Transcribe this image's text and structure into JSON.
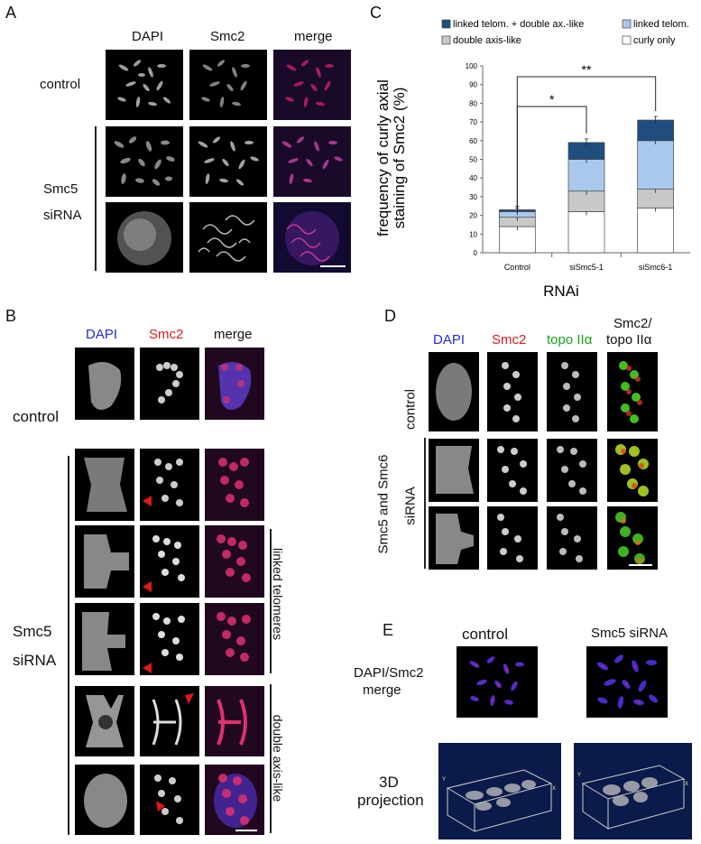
{
  "panels": {
    "A": {
      "label": "A",
      "columns": [
        "DAPI",
        "Smc2",
        "merge"
      ],
      "rows": [
        "control",
        "Smc5",
        "siRNA"
      ]
    },
    "B": {
      "label": "B",
      "columns": [
        "DAPI",
        "Smc2",
        "merge"
      ],
      "rows": [
        "control",
        "Smc5",
        "siRNA"
      ],
      "groups": [
        "linked telomeres",
        "double axis-like"
      ],
      "column_colors": {
        "DAPI": "#2a2ad8",
        "Smc2": "#d42020",
        "merge": "#111111"
      }
    },
    "C": {
      "label": "C",
      "significance": [
        "*",
        "**"
      ]
    },
    "D": {
      "label": "D",
      "columns": [
        "DAPI",
        "Smc2",
        "topo IIα",
        "Smc2/",
        "topo IIα"
      ],
      "column_colors": {
        "DAPI": "#2a2ad8",
        "Smc2": "#d42020",
        "topo": "#1aa01a",
        "merge": "#111111"
      },
      "rows": [
        "control",
        "Smc5 and Smc6",
        "siRNA"
      ]
    },
    "E": {
      "label": "E",
      "columns": [
        "control",
        "Smc5 siRNA"
      ],
      "rows": [
        "DAPI/Smc2",
        "merge",
        "3D",
        "projection"
      ]
    }
  },
  "chart_data": {
    "type": "bar",
    "stacked": true,
    "categories": [
      "Control",
      "siSmc5-1",
      "siSmc6-1"
    ],
    "series": [
      {
        "name": "curly only",
        "values": [
          14,
          22,
          24
        ],
        "color": "#ffffff"
      },
      {
        "name": "double axis-like",
        "values": [
          5,
          11,
          10
        ],
        "color": "#c8c8c8"
      },
      {
        "name": "linked telom.",
        "values": [
          3,
          17,
          26
        ],
        "color": "#a9c8ec"
      },
      {
        "name": "linked telom. + double ax.-like",
        "values": [
          1,
          9,
          11
        ],
        "color": "#1f4e7e"
      }
    ],
    "totals": [
      23,
      59,
      71
    ],
    "ylabel": "frequency of curly axial staining of Smc2 (%)",
    "xlabel": "RNAi",
    "ylim": [
      0,
      100
    ],
    "yticks": [
      "0",
      "10",
      "20",
      "30",
      "40",
      "50",
      "60",
      "70",
      "80",
      "90",
      "100"
    ],
    "legend_placement": "top"
  }
}
